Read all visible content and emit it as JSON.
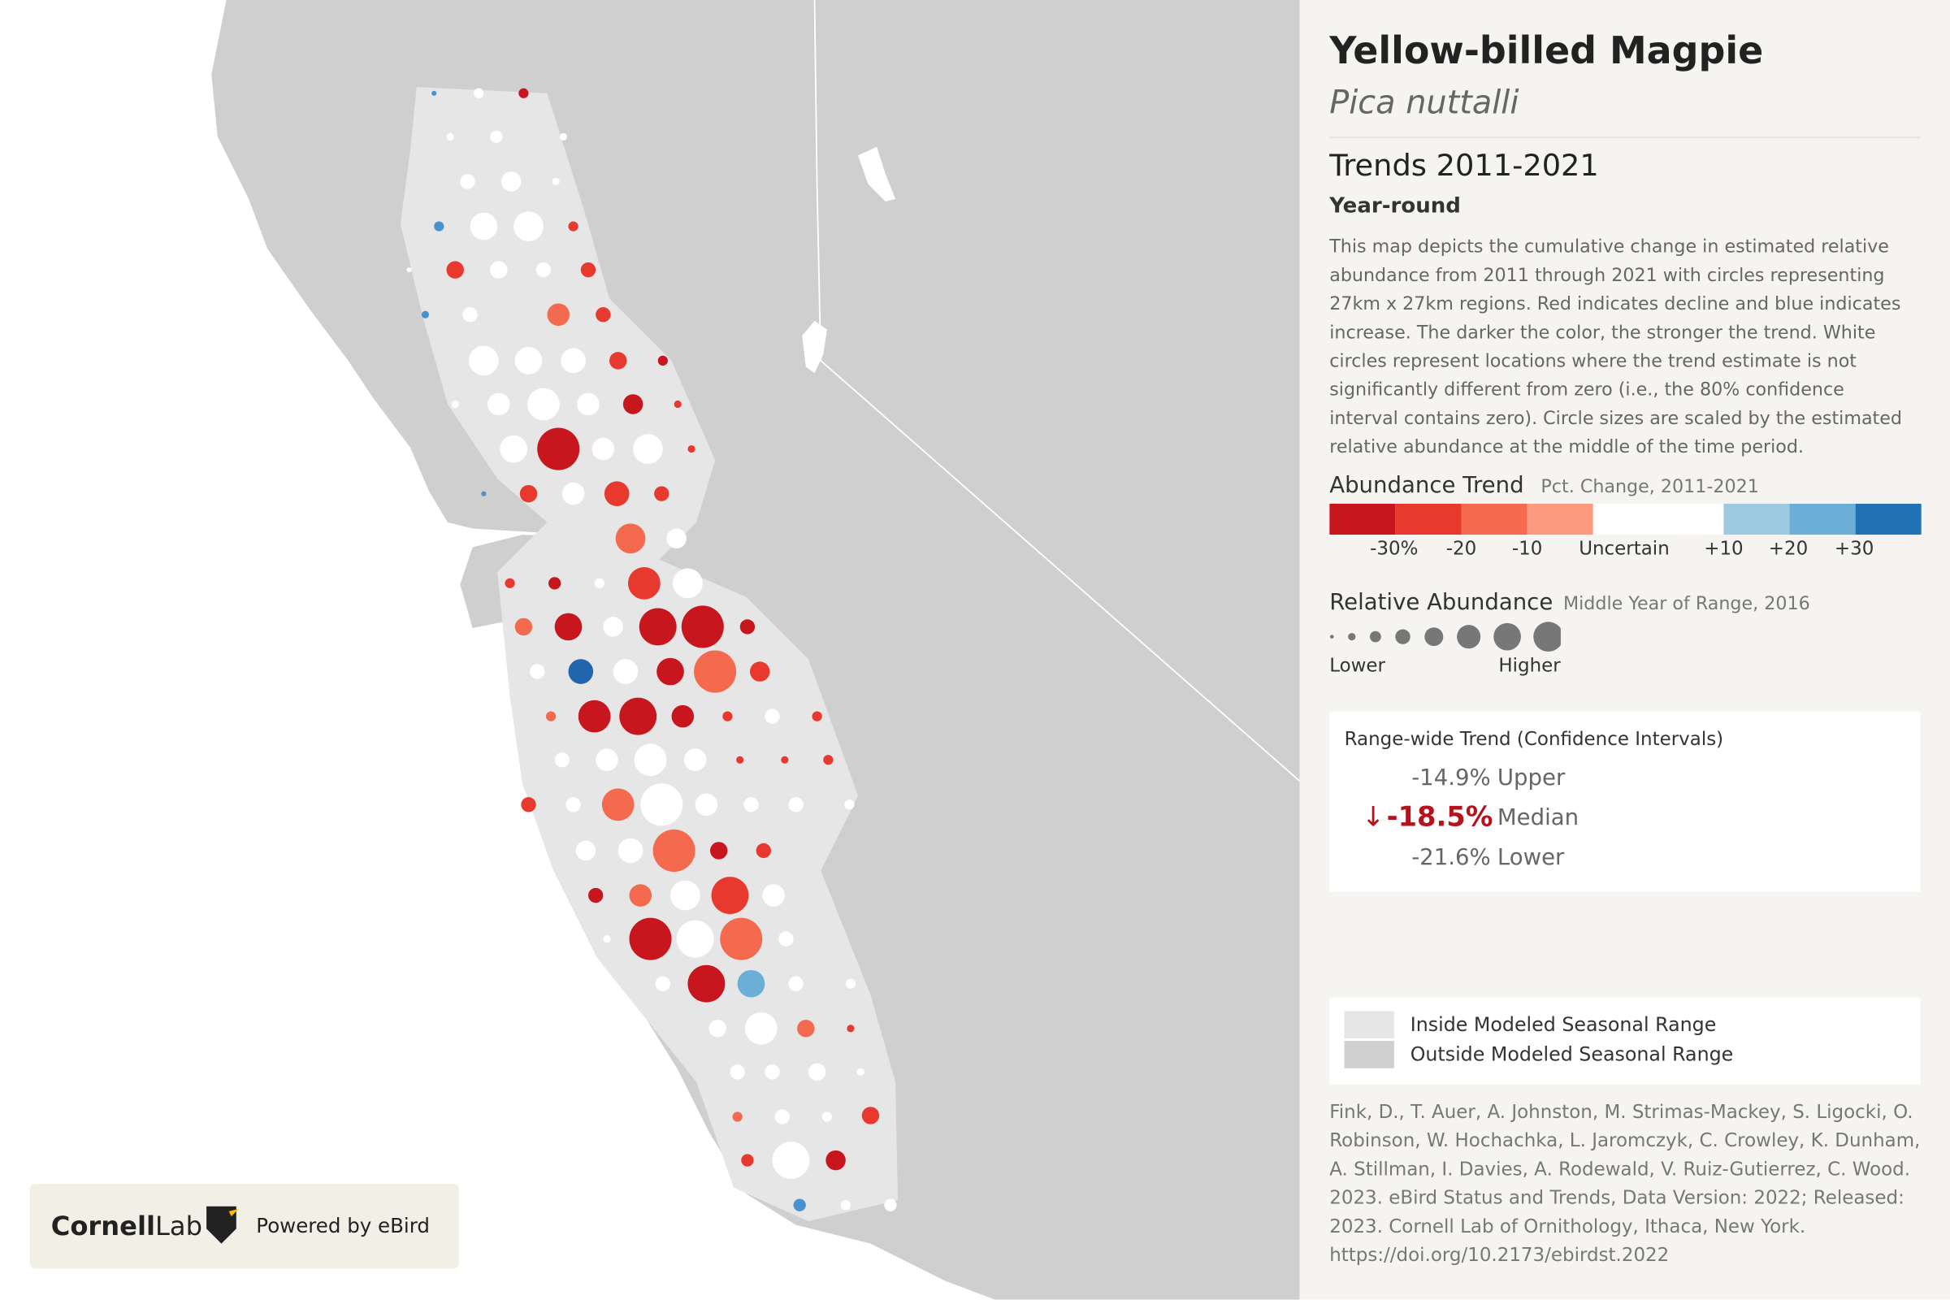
{
  "title": "Yellow-billed Magpie",
  "scientific_name": "Pica nuttalli",
  "section_title": "Trends 2011-2021",
  "season": "Year-round",
  "description": "This map depicts the cumulative change in estimated relative abundance from 2011 through 2021 with circles representing 27km x 27km regions. Red indicates decline and blue indicates increase. The darker the color, the stronger the trend. White circles represent locations where the trend estimate is not significantly different from zero (i.e., the 80% confidence interval contains zero). Circle sizes are scaled by the estimated relative abundance at the middle of the time period.",
  "trend_legend": {
    "title": "Abundance Trend",
    "subtitle": "Pct. Change, 2011-2021",
    "labels": [
      "-30%",
      "-20",
      "-10",
      "Uncertain",
      "+10",
      "+20",
      "+30"
    ]
  },
  "abundance_legend": {
    "title": "Relative Abundance",
    "subtitle": "Middle Year of Range, 2016",
    "low": "Lower",
    "high": "Higher"
  },
  "range_wide": {
    "title": "Range-wide Trend (Confidence Intervals)",
    "arrow": "↓",
    "rows": [
      {
        "value": "-14.9%",
        "label": "Upper"
      },
      {
        "value": "-18.5%",
        "label": "Median"
      },
      {
        "value": "-21.6%",
        "label": "Lower"
      }
    ]
  },
  "range_legend": [
    "Inside Modeled Seasonal Range",
    "Outside Modeled Seasonal Range"
  ],
  "citation": "Fink, D., T. Auer, A. Johnston, M. Strimas-Mackey, S. Ligocki, O. Robinson, W. Hochachka, L. Jaromczyk, C. Crowley, K. Dunham, A. Stillman, I. Davies, A. Rodewald, V. Ruiz-Gutierrez, C. Wood. 2023. eBird Status and Trends, Data Version: 2022; Released: 2023. Cornell Lab of Ornithology, Ithaca, New York. https://doi.org/10.2173/ebirdst.2022",
  "logo": {
    "brand_bold": "Cornell",
    "brand_light": "Lab",
    "powered": "Powered by eBird"
  }
}
